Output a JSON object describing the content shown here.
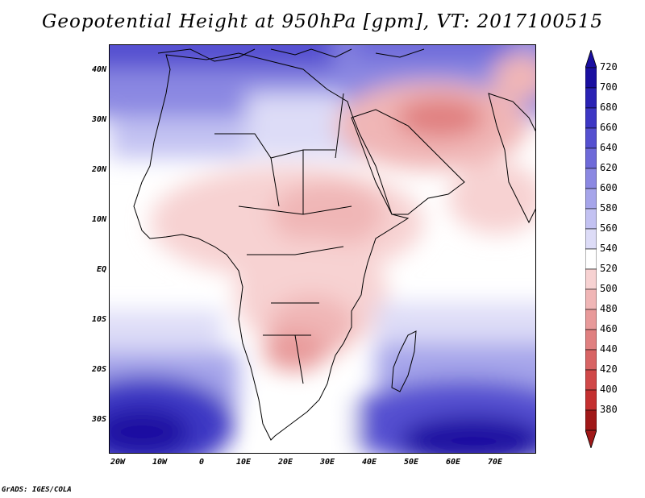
{
  "title": "Geopotential Height at 950hPa [gpm], VT: 2017100515",
  "credit": "GrADS: IGES/COLA",
  "lat_labels": [
    "40N",
    "30N",
    "20N",
    "10N",
    "EQ",
    "10S",
    "20S",
    "30S"
  ],
  "lon_labels": [
    "20W",
    "10W",
    "0",
    "10E",
    "20E",
    "30E",
    "40E",
    "50E",
    "60E",
    "70E"
  ],
  "colorbar": {
    "levels": [
      "720",
      "700",
      "680",
      "660",
      "640",
      "620",
      "600",
      "580",
      "560",
      "540",
      "520",
      "500",
      "480",
      "460",
      "440",
      "420",
      "400",
      "380"
    ],
    "colors": [
      "#1a0fa0",
      "#2a22b4",
      "#3d37c4",
      "#5550d0",
      "#6e6ad9",
      "#8b88e2",
      "#a6a5ea",
      "#c3c2f2",
      "#dddcf7",
      "#ffffff",
      "#f7d2d2",
      "#f0b6b6",
      "#e89a9a",
      "#e08080",
      "#d86464",
      "#d04848",
      "#c43030",
      "#a01818"
    ],
    "top_arrow_color": "#1a0fa0",
    "bottom_arrow_color": "#a01818"
  }
}
